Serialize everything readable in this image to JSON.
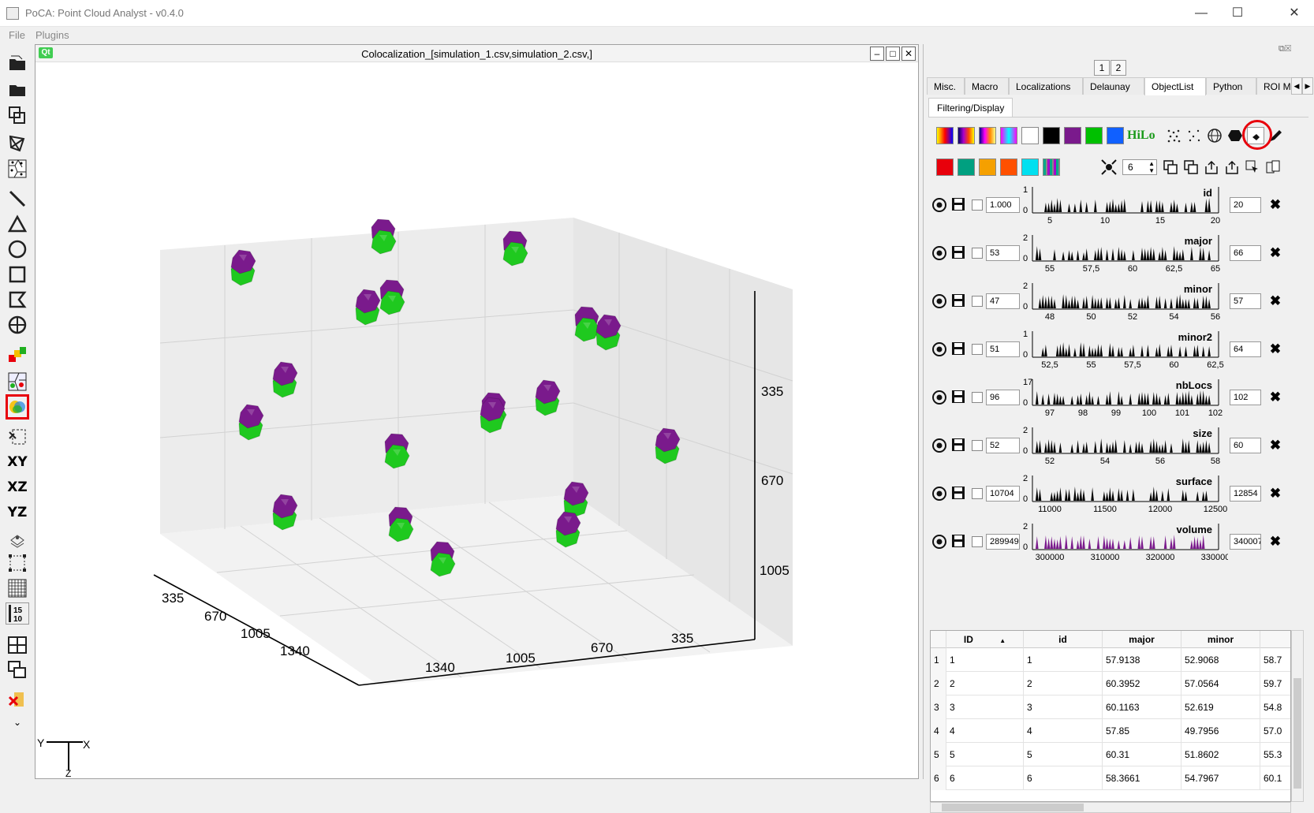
{
  "window": {
    "title": "PoCA: Point Cloud Analyst - v0.4.0",
    "minimize": "—",
    "maximize": "☐",
    "close": "✕"
  },
  "menu": {
    "file": "File",
    "plugins": "Plugins"
  },
  "toolbar": {
    "xy": "XY",
    "xz": "XZ",
    "yz": "YZ",
    "badge_top": "15",
    "badge_bottom": "10",
    "more": "⌄"
  },
  "subwindow": {
    "logo": "Qt",
    "title": "Colocalization_[simulation_1.csv,simulation_2.csv,]",
    "min": "–",
    "max": "□",
    "close": "✕"
  },
  "view": {
    "axis_ticks_bottom_left": [
      "335",
      "670",
      "1005",
      "1340"
    ],
    "axis_ticks_bottom_right": [
      "1340",
      "1005",
      "670",
      "335"
    ],
    "axis_ticks_right": [
      "335",
      "670",
      "1005"
    ],
    "orientation": {
      "y": "Y",
      "x": "X",
      "z": "Z"
    },
    "colors": {
      "green": "#1fc91f",
      "purple": "#7a1a8c"
    }
  },
  "panel": {
    "float_icons": "⧉☒",
    "pages": [
      "1",
      "2"
    ],
    "tabs": [
      "Misc.",
      "Macro",
      "Localizations",
      "Delaunay",
      "ObjectList",
      "Python",
      "ROI Mar"
    ],
    "active_tab": "ObjectList",
    "subtab": "Filtering/Display",
    "hilo": "HiLo",
    "point_size": "6",
    "colors_row1": [
      "#ffffff",
      "#000000",
      "#7a1a8c",
      "#00c000",
      "#1060ff"
    ],
    "colors_row2": [
      "#e8000b",
      "#00a080",
      "#f5a000",
      "#ff5000",
      "#00e0f0"
    ],
    "features": [
      {
        "name": "id",
        "min": "1.000",
        "max": "20",
        "ymax": "1",
        "ticks": [
          "5",
          "10",
          "15",
          "20"
        ]
      },
      {
        "name": "major",
        "min": "53",
        "max": "66",
        "ymax": "2",
        "ticks": [
          "55",
          "57,5",
          "60",
          "62,5",
          "65"
        ]
      },
      {
        "name": "minor",
        "min": "47",
        "max": "57",
        "ymax": "2",
        "ticks": [
          "48",
          "50",
          "52",
          "54",
          "56"
        ]
      },
      {
        "name": "minor2",
        "min": "51",
        "max": "64",
        "ymax": "1",
        "ticks": [
          "52,5",
          "55",
          "57,5",
          "60",
          "62,5"
        ]
      },
      {
        "name": "nbLocs",
        "min": "96",
        "max": "102",
        "ymax": "17",
        "ticks": [
          "97",
          "98",
          "99",
          "100",
          "101",
          "102"
        ]
      },
      {
        "name": "size",
        "min": "52",
        "max": "60",
        "ymax": "2",
        "ticks": [
          "52",
          "54",
          "56",
          "58"
        ]
      },
      {
        "name": "surface",
        "min": "10704",
        "max": "12854",
        "ymax": "2",
        "ticks": [
          "11000",
          "11500",
          "12000",
          "12500"
        ]
      },
      {
        "name": "volume",
        "min": "289949",
        "max": "340007",
        "ymax": "2",
        "ticks": [
          "300000",
          "310000",
          "320000",
          "330000"
        ]
      }
    ],
    "table": {
      "headers": [
        "ID",
        "id",
        "major",
        "minor"
      ],
      "rows": [
        [
          "1",
          "1",
          "1",
          "57.9138",
          "52.9068",
          "58.7"
        ],
        [
          "2",
          "2",
          "2",
          "60.3952",
          "57.0564",
          "59.7"
        ],
        [
          "3",
          "3",
          "3",
          "60.1163",
          "52.619",
          "54.8"
        ],
        [
          "4",
          "4",
          "4",
          "57.85",
          "49.7956",
          "57.0"
        ],
        [
          "5",
          "5",
          "5",
          "60.31",
          "51.8602",
          "55.3"
        ],
        [
          "6",
          "6",
          "6",
          "58.3661",
          "54.7967",
          "60.1"
        ]
      ]
    }
  }
}
